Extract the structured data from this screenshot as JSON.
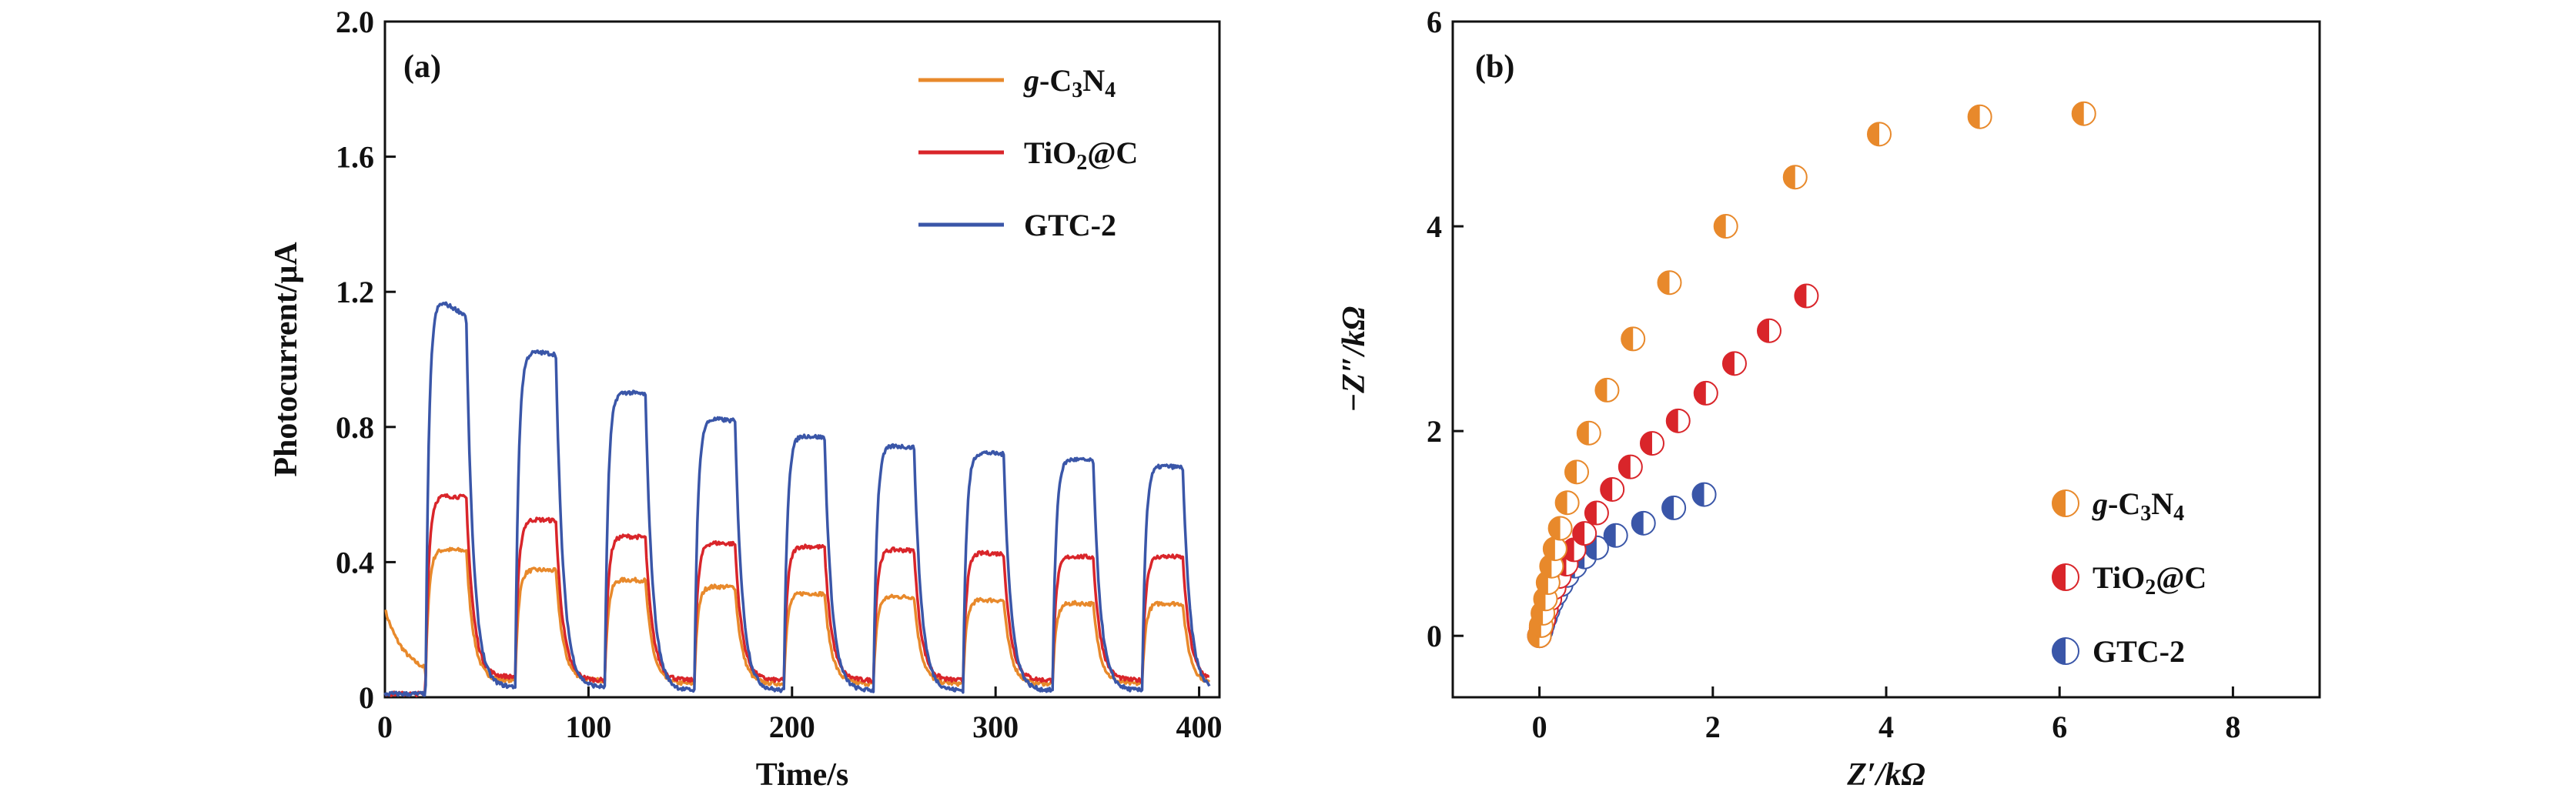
{
  "chart_data": [
    {
      "panel": "(a)",
      "type": "line",
      "xlabel": "Time/s",
      "ylabel": "Photocurrent/μA",
      "xlim": [
        0,
        410
      ],
      "ylim": [
        0,
        2.0
      ],
      "xticks": [
        "0",
        "100",
        "200",
        "300",
        "400"
      ],
      "yticks": [
        "0",
        "0.4",
        "0.8",
        "1.2",
        "1.6",
        "2.0"
      ],
      "on_times": [
        20,
        64,
        108,
        152,
        196,
        240,
        284,
        328,
        372
      ],
      "off_times": [
        40,
        84,
        128,
        172,
        216,
        260,
        304,
        348,
        392
      ],
      "series": [
        {
          "name": "g-C3N4",
          "legend_parts": [
            {
              "t": "g",
              "italic": true
            },
            {
              "t": "-C"
            },
            {
              "t": "3",
              "sub": true
            },
            {
              "t": "N"
            },
            {
              "t": "4",
              "sub": true
            }
          ],
          "color": "#e8892b",
          "on_peak_values": [
            0.44,
            0.38,
            0.35,
            0.33,
            0.31,
            0.3,
            0.29,
            0.28,
            0.28
          ],
          "off_values": [
            0.06,
            0.05,
            0.05,
            0.04,
            0.04,
            0.04,
            0.04,
            0.04,
            0.04
          ],
          "initial_value": 0.26
        },
        {
          "name": "TiO2@C",
          "legend_parts": [
            {
              "t": "TiO"
            },
            {
              "t": "2",
              "sub": true
            },
            {
              "t": "@C"
            }
          ],
          "color": "#d9252a",
          "on_peak_values": [
            0.6,
            0.53,
            0.48,
            0.46,
            0.45,
            0.44,
            0.43,
            0.42,
            0.42
          ],
          "off_values": [
            0.06,
            0.06,
            0.05,
            0.05,
            0.05,
            0.05,
            0.05,
            0.05,
            0.05
          ],
          "initial_value": 0.01
        },
        {
          "name": "GTC-2",
          "legend_parts": [
            {
              "t": "GTC-2"
            }
          ],
          "color": "#3a56a8",
          "on_peak_values": [
            1.2,
            1.03,
            0.91,
            0.83,
            0.78,
            0.75,
            0.73,
            0.71,
            0.69
          ],
          "off_values": [
            0.03,
            0.03,
            0.03,
            0.02,
            0.02,
            0.02,
            0.02,
            0.02,
            0.02
          ],
          "initial_value": 0.01
        }
      ]
    },
    {
      "panel": "(b)",
      "type": "scatter",
      "xlabel": "Z′/kΩ",
      "ylabel": "−Z″/kΩ",
      "xlim": [
        -1,
        9
      ],
      "ylim": [
        -0.6,
        6
      ],
      "xticks": [
        "0",
        "2",
        "4",
        "6",
        "8"
      ],
      "yticks": [
        "0",
        "2",
        "4",
        "6"
      ],
      "series": [
        {
          "name": "g-C3N4",
          "legend_parts": [
            {
              "t": "g",
              "italic": true
            },
            {
              "t": "-C"
            },
            {
              "t": "3",
              "sub": true
            },
            {
              "t": "N"
            },
            {
              "t": "4",
              "sub": true
            }
          ],
          "color": "#e8892b",
          "x": [
            0.0,
            0.02,
            0.04,
            0.07,
            0.1,
            0.14,
            0.18,
            0.24,
            0.32,
            0.43,
            0.57,
            0.78,
            1.08,
            1.5,
            2.15,
            2.95,
            3.92,
            5.08,
            6.28
          ],
          "y": [
            0.0,
            0.1,
            0.22,
            0.36,
            0.52,
            0.68,
            0.85,
            1.05,
            1.3,
            1.6,
            1.98,
            2.4,
            2.9,
            3.45,
            4.0,
            4.48,
            4.9,
            5.07,
            5.1
          ]
        },
        {
          "name": "TiO2@C",
          "legend_parts": [
            {
              "t": "TiO"
            },
            {
              "t": "2",
              "sub": true
            },
            {
              "t": "@C"
            }
          ],
          "color": "#d9252a",
          "x": [
            0.0,
            0.02,
            0.05,
            0.08,
            0.12,
            0.17,
            0.23,
            0.31,
            0.4,
            0.52,
            0.66,
            0.84,
            1.05,
            1.3,
            1.6,
            1.92,
            2.25,
            2.65,
            3.08
          ],
          "y": [
            0.0,
            0.08,
            0.16,
            0.26,
            0.36,
            0.47,
            0.58,
            0.7,
            0.84,
            1.0,
            1.2,
            1.43,
            1.65,
            1.88,
            2.1,
            2.37,
            2.66,
            2.98,
            3.32
          ]
        },
        {
          "name": "GTC-2",
          "legend_parts": [
            {
              "t": "GTC-2"
            }
          ],
          "color": "#3a56a8",
          "x": [
            0.0,
            0.02,
            0.04,
            0.07,
            0.1,
            0.14,
            0.19,
            0.25,
            0.32,
            0.41,
            0.52,
            0.66,
            0.88,
            1.2,
            1.55,
            1.9
          ],
          "y": [
            0.0,
            0.05,
            0.11,
            0.18,
            0.25,
            0.33,
            0.41,
            0.5,
            0.59,
            0.68,
            0.77,
            0.86,
            0.98,
            1.1,
            1.25,
            1.38
          ]
        }
      ]
    }
  ]
}
